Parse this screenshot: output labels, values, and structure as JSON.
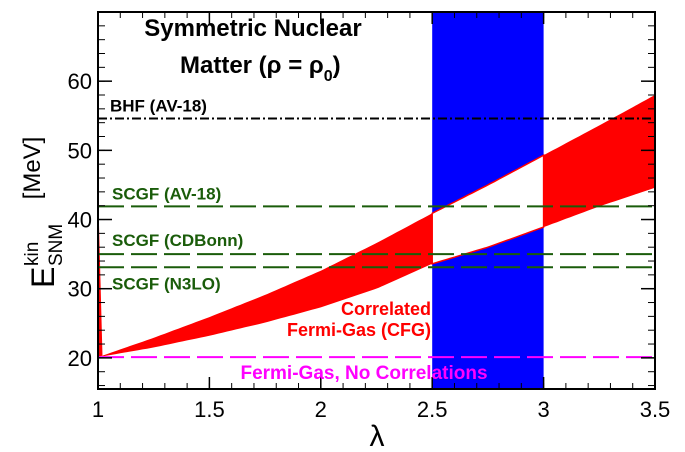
{
  "chart_data": {
    "type": "area",
    "title_line1": "Symmetric Nuclear",
    "title_line2": "Matter (",
    "title_rho": "ρ",
    "title_eq": " = ",
    "title_rho0": "ρ",
    "title_sub0": "0",
    "title_close": ")",
    "xlabel": "λ",
    "ylabel_main": "E",
    "ylabel_sup": "kin",
    "ylabel_sub": "SNM",
    "ylabel_unit": "[MeV]",
    "xlim": [
      1,
      3.5
    ],
    "ylim": [
      15.5,
      70
    ],
    "x_ticks": [
      1,
      1.5,
      2,
      2.5,
      3,
      3.5
    ],
    "x_tick_labels": [
      "1",
      "1.5",
      "2",
      "2.5",
      "3",
      "3.5"
    ],
    "y_ticks": [
      20,
      30,
      40,
      50,
      60
    ],
    "y_tick_labels": [
      "20",
      "30",
      "40",
      "50",
      "60"
    ],
    "highlight_band": {
      "x_from": 2.5,
      "x_to": 3.0,
      "color": "#0000ff"
    },
    "cfg_band": {
      "label_line1": "Correlated",
      "label_line2": "Fermi-Gas (CFG)",
      "color": "#ff0000",
      "x": [
        1.0,
        1.25,
        1.5,
        1.75,
        2.0,
        2.25,
        2.5,
        2.75,
        3.0,
        3.25,
        3.5
      ],
      "upper": [
        20.1,
        22.9,
        25.9,
        29.1,
        32.6,
        36.6,
        40.9,
        45.0,
        49.3,
        53.6,
        58.0
      ],
      "lower": [
        20.1,
        21.5,
        23.2,
        25.1,
        27.3,
        30.0,
        33.6,
        36.0,
        38.9,
        41.9,
        44.6
      ]
    },
    "reference_lines": [
      {
        "name": "bhf",
        "label": "BHF (AV-18)",
        "value": 54.6,
        "color": "#000000",
        "style": "dash-dot"
      },
      {
        "name": "scgf-av18",
        "label": "SCGF (AV-18)",
        "value": 41.9,
        "color": "#1a5c0a",
        "style": "dashed"
      },
      {
        "name": "scgf-cdbonn",
        "label": "SCGF (CDBonn)",
        "value": 35.0,
        "color": "#1a5c0a",
        "style": "dashed"
      },
      {
        "name": "scgf-n3lo",
        "label": "SCGF (N3LO)",
        "value": 33.1,
        "color": "#1a5c0a",
        "style": "dashed"
      },
      {
        "name": "fermi-gas",
        "label": "Fermi-Gas, No Correlations",
        "value": 20.1,
        "color": "#ff00ff",
        "style": "dashed"
      }
    ]
  }
}
